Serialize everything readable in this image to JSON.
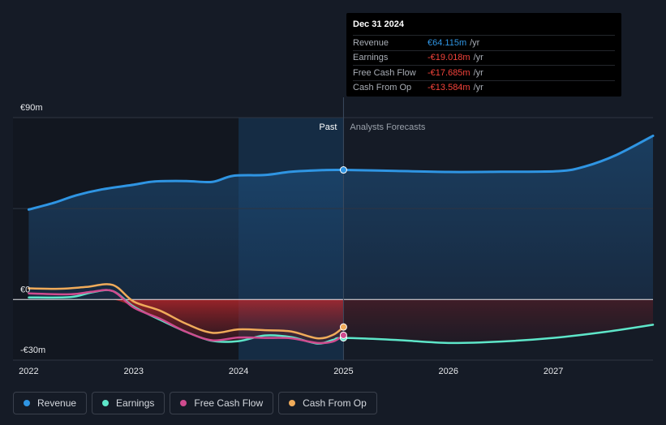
{
  "tooltip": {
    "date": "Dec 31 2024",
    "rows": [
      {
        "label": "Revenue",
        "value": "€64.115m",
        "unit": "/yr"
      },
      {
        "label": "Earnings",
        "value": "-€19.018m",
        "unit": "/yr"
      },
      {
        "label": "Free Cash Flow",
        "value": "-€17.685m",
        "unit": "/yr"
      },
      {
        "label": "Cash From Op",
        "value": "-€13.584m",
        "unit": "/yr"
      }
    ]
  },
  "legend": [
    {
      "label": "Revenue",
      "color": "#2f95e3"
    },
    {
      "label": "Earnings",
      "color": "#5ee6c9"
    },
    {
      "label": "Free Cash Flow",
      "color": "#cf4b8f"
    },
    {
      "label": "Cash From Op",
      "color": "#f0ab5a"
    }
  ],
  "chart_data": {
    "type": "line",
    "y_tick_labels": [
      "€90m",
      "€0",
      "-€30m"
    ],
    "y_ticks": [
      90,
      0,
      -30
    ],
    "ylim": [
      -30,
      90
    ],
    "xlim": [
      2021.85,
      2027.95
    ],
    "x_ticks": [
      2022,
      2023,
      2024,
      2025,
      2026,
      2027
    ],
    "x_tick_labels": [
      "2022",
      "2023",
      "2024",
      "2025",
      "2026",
      "2027"
    ],
    "past_label": "Past",
    "forecast_label": "Analysts Forecasts",
    "divider_x": 2025.0,
    "highlight_start": 2024.0,
    "grid": true,
    "series": [
      {
        "name": "Revenue",
        "color": "#2f95e3",
        "x": [
          2022.0,
          2022.25,
          2022.45,
          2022.7,
          2023.0,
          2023.2,
          2023.5,
          2023.75,
          2023.95,
          2024.25,
          2024.5,
          2024.8,
          2025.0,
          2025.5,
          2026.0,
          2026.5,
          2027.05,
          2027.3,
          2027.6,
          2027.95
        ],
        "y": [
          44.5,
          48.0,
          51.5,
          54.5,
          56.8,
          58.4,
          58.6,
          58.2,
          61.2,
          61.6,
          63.2,
          64.0,
          64.1,
          63.6,
          63.1,
          63.2,
          63.5,
          65.8,
          71.5,
          81.0
        ]
      },
      {
        "name": "Earnings",
        "color": "#5ee6c9",
        "x": [
          2022.0,
          2022.4,
          2022.6,
          2022.8,
          2023.0,
          2023.25,
          2023.5,
          2023.75,
          2024.0,
          2024.25,
          2024.5,
          2024.75,
          2024.9,
          2025.0,
          2025.5,
          2026.0,
          2026.5,
          2027.0,
          2027.5,
          2027.95
        ],
        "y": [
          1.0,
          1.2,
          3.5,
          4.2,
          -3.5,
          -10.0,
          -16.0,
          -20.5,
          -20.6,
          -17.8,
          -18.6,
          -21.8,
          -20.0,
          -19.0,
          -20.0,
          -21.5,
          -20.8,
          -19.0,
          -16.0,
          -12.5
        ]
      },
      {
        "name": "Free Cash Flow",
        "color": "#cf4b8f",
        "x": [
          2022.0,
          2022.4,
          2022.6,
          2022.8,
          2023.0,
          2023.25,
          2023.5,
          2023.75,
          2024.0,
          2024.25,
          2024.5,
          2024.75,
          2024.9,
          2025.0
        ],
        "y": [
          3.0,
          2.6,
          3.8,
          4.2,
          -4.0,
          -9.5,
          -16.0,
          -20.2,
          -18.8,
          -19.0,
          -19.2,
          -21.5,
          -20.8,
          -17.7
        ]
      },
      {
        "name": "Cash From Op",
        "color": "#f0ab5a",
        "x": [
          2022.0,
          2022.3,
          2022.55,
          2022.8,
          2023.0,
          2023.25,
          2023.5,
          2023.75,
          2024.0,
          2024.25,
          2024.5,
          2024.75,
          2024.9,
          2025.0
        ],
        "y": [
          5.5,
          5.3,
          6.2,
          7.2,
          -1.0,
          -5.5,
          -12.0,
          -16.5,
          -14.8,
          -15.2,
          -15.8,
          -19.2,
          -17.5,
          -13.6
        ]
      }
    ]
  }
}
